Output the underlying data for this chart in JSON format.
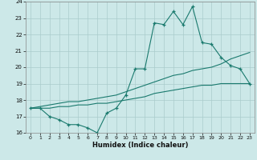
{
  "xlabel": "Humidex (Indice chaleur)",
  "bg_color": "#cce8e8",
  "grid_color": "#aacccc",
  "line_color": "#1a7a6e",
  "x_values": [
    0,
    1,
    2,
    3,
    4,
    5,
    6,
    7,
    8,
    9,
    10,
    11,
    12,
    13,
    14,
    15,
    16,
    17,
    18,
    19,
    20,
    21,
    22,
    23
  ],
  "series1": [
    17.5,
    17.5,
    17.0,
    16.8,
    16.5,
    16.5,
    16.3,
    16.0,
    17.2,
    17.5,
    18.3,
    19.9,
    19.9,
    22.7,
    22.6,
    23.4,
    22.6,
    23.7,
    21.5,
    21.4,
    20.6,
    20.1,
    19.9,
    19.0
  ],
  "line1": [
    17.5,
    17.6,
    17.7,
    17.8,
    17.9,
    17.9,
    18.0,
    18.1,
    18.2,
    18.3,
    18.5,
    18.7,
    18.9,
    19.1,
    19.3,
    19.5,
    19.6,
    19.8,
    19.9,
    20.0,
    20.2,
    20.5,
    20.7,
    20.9
  ],
  "line2": [
    17.5,
    17.5,
    17.5,
    17.6,
    17.6,
    17.7,
    17.7,
    17.8,
    17.8,
    17.9,
    18.0,
    18.1,
    18.2,
    18.4,
    18.5,
    18.6,
    18.7,
    18.8,
    18.9,
    18.9,
    19.0,
    19.0,
    19.0,
    19.0
  ],
  "ylim": [
    16,
    24
  ],
  "xlim": [
    -0.5,
    23.5
  ],
  "yticks": [
    16,
    17,
    18,
    19,
    20,
    21,
    22,
    23,
    24
  ],
  "xticks": [
    0,
    1,
    2,
    3,
    4,
    5,
    6,
    7,
    8,
    9,
    10,
    11,
    12,
    13,
    14,
    15,
    16,
    17,
    18,
    19,
    20,
    21,
    22,
    23
  ]
}
